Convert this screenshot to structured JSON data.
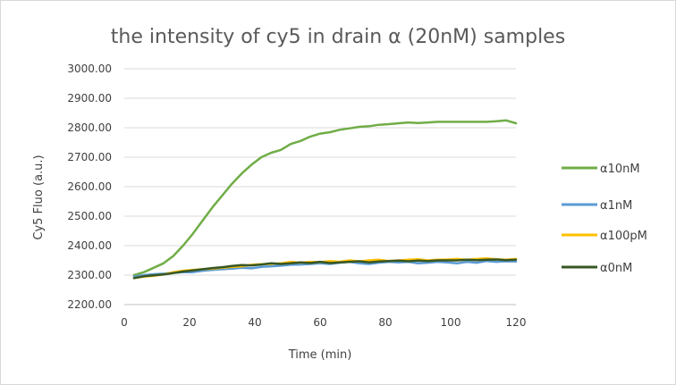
{
  "chart_data": {
    "type": "line",
    "title": "the intensity of cy5 in drain α (20nM) samples",
    "xlabel": "Time (min)",
    "ylabel": "Cy5 Fluo (a.u.)",
    "xlim": [
      0,
      120
    ],
    "ylim": [
      2200,
      3000
    ],
    "xticks": [
      "0",
      "20",
      "40",
      "60",
      "80",
      "100",
      "120"
    ],
    "yticks": [
      "2200.00",
      "2300.00",
      "2400.00",
      "2500.00",
      "2600.00",
      "2700.00",
      "2800.00",
      "2900.00",
      "3000.00"
    ],
    "grid": true,
    "legend_position": "right",
    "series": [
      {
        "name": "α10nM",
        "color": "#70ad47",
        "x": [
          3,
          6,
          9,
          12,
          15,
          18,
          21,
          24,
          27,
          30,
          33,
          36,
          39,
          42,
          45,
          48,
          51,
          54,
          57,
          60,
          63,
          66,
          69,
          72,
          75,
          78,
          81,
          84,
          87,
          90,
          93,
          96,
          99,
          102,
          105,
          108,
          111,
          114,
          117,
          120
        ],
        "y": [
          2300,
          2310,
          2325,
          2340,
          2365,
          2400,
          2440,
          2485,
          2530,
          2570,
          2610,
          2645,
          2675,
          2700,
          2715,
          2725,
          2745,
          2755,
          2770,
          2780,
          2785,
          2793,
          2798,
          2803,
          2805,
          2810,
          2812,
          2815,
          2818,
          2816,
          2818,
          2820,
          2820,
          2820,
          2820,
          2820,
          2820,
          2822,
          2825,
          2815
        ]
      },
      {
        "name": "α1nM",
        "color": "#5b9bd5",
        "x": [
          3,
          6,
          9,
          12,
          15,
          18,
          21,
          24,
          27,
          30,
          33,
          36,
          39,
          42,
          45,
          48,
          51,
          54,
          57,
          60,
          63,
          66,
          69,
          72,
          75,
          78,
          81,
          84,
          87,
          90,
          93,
          96,
          99,
          102,
          105,
          108,
          111,
          114,
          117,
          120
        ],
        "y": [
          2295,
          2300,
          2303,
          2305,
          2308,
          2310,
          2310,
          2315,
          2318,
          2320,
          2322,
          2325,
          2323,
          2328,
          2330,
          2332,
          2335,
          2336,
          2338,
          2340,
          2338,
          2342,
          2345,
          2340,
          2338,
          2342,
          2345,
          2343,
          2345,
          2340,
          2342,
          2345,
          2343,
          2340,
          2345,
          2342,
          2348,
          2345,
          2347,
          2346
        ]
      },
      {
        "name": "α100pM",
        "color": "#ffc000",
        "x": [
          3,
          6,
          9,
          12,
          15,
          18,
          21,
          24,
          27,
          30,
          33,
          36,
          39,
          42,
          45,
          48,
          51,
          54,
          57,
          60,
          63,
          66,
          69,
          72,
          75,
          78,
          81,
          84,
          87,
          90,
          93,
          96,
          99,
          102,
          105,
          108,
          111,
          114,
          117,
          120
        ],
        "y": [
          2290,
          2295,
          2298,
          2302,
          2310,
          2315,
          2318,
          2320,
          2322,
          2325,
          2328,
          2330,
          2335,
          2337,
          2338,
          2340,
          2345,
          2342,
          2345,
          2344,
          2348,
          2345,
          2350,
          2347,
          2350,
          2352,
          2348,
          2350,
          2352,
          2354,
          2350,
          2352,
          2353,
          2355,
          2352,
          2355,
          2357,
          2354,
          2352,
          2355
        ]
      },
      {
        "name": "α0nM",
        "color": "#375623",
        "x": [
          3,
          6,
          9,
          12,
          15,
          18,
          21,
          24,
          27,
          30,
          33,
          36,
          39,
          42,
          45,
          48,
          51,
          54,
          57,
          60,
          63,
          66,
          69,
          72,
          75,
          78,
          81,
          84,
          87,
          90,
          93,
          96,
          99,
          102,
          105,
          108,
          111,
          114,
          117,
          120
        ],
        "y": [
          2290,
          2296,
          2299,
          2302,
          2307,
          2312,
          2316,
          2320,
          2324,
          2327,
          2331,
          2334,
          2333,
          2336,
          2340,
          2338,
          2340,
          2343,
          2341,
          2345,
          2341,
          2343,
          2345,
          2347,
          2343,
          2346,
          2348,
          2349,
          2347,
          2349,
          2348,
          2350,
          2350,
          2350,
          2352,
          2351,
          2352,
          2353,
          2351,
          2352
        ]
      }
    ]
  }
}
